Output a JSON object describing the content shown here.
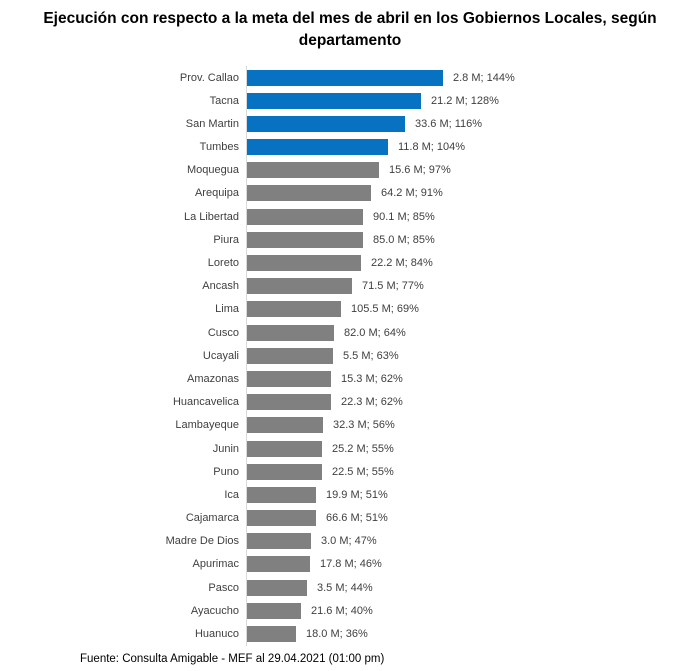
{
  "title": "Ejecución con respecto a la meta del mes de abril en los Gobiernos Locales, según departamento",
  "footer": "Fuente: Consulta Amigable - MEF al 29.04.2021 (01:00 pm)",
  "colors": {
    "above_goal_blue": "#0872C2",
    "below_goal_gray": "#808080",
    "axis_line": "#d9d9d9",
    "text": "#3f3f3f"
  },
  "chart_data": {
    "type": "bar",
    "orientation": "horizontal",
    "title": "Ejecución con respecto a la meta del mes de abril en los Gobiernos Locales, según departamento",
    "xlabel": "",
    "ylabel": "",
    "value_unit": "percent of monthly goal",
    "xlim": [
      0,
      150
    ],
    "grid": false,
    "legend": "none",
    "rows": [
      {
        "label": "Prov. Callao",
        "amount": "2.8 M",
        "pct": 144,
        "value_label": "2.8 M; 144%",
        "highlight": true
      },
      {
        "label": "Tacna",
        "amount": "21.2 M",
        "pct": 128,
        "value_label": "21.2 M; 128%",
        "highlight": true
      },
      {
        "label": "San Martin",
        "amount": "33.6 M",
        "pct": 116,
        "value_label": "33.6 M; 116%",
        "highlight": true
      },
      {
        "label": "Tumbes",
        "amount": "11.8 M",
        "pct": 104,
        "value_label": "11.8 M; 104%",
        "highlight": true
      },
      {
        "label": "Moquegua",
        "amount": "15.6 M",
        "pct": 97,
        "value_label": "15.6 M; 97%",
        "highlight": false
      },
      {
        "label": "Arequipa",
        "amount": "64.2 M",
        "pct": 91,
        "value_label": "64.2 M; 91%",
        "highlight": false
      },
      {
        "label": "La Libertad",
        "amount": "90.1 M",
        "pct": 85,
        "value_label": "90.1 M; 85%",
        "highlight": false
      },
      {
        "label": "Piura",
        "amount": "85.0 M",
        "pct": 85,
        "value_label": "85.0 M; 85%",
        "highlight": false
      },
      {
        "label": "Loreto",
        "amount": "22.2 M",
        "pct": 84,
        "value_label": "22.2 M; 84%",
        "highlight": false
      },
      {
        "label": "Ancash",
        "amount": "71.5 M",
        "pct": 77,
        "value_label": "71.5 M; 77%",
        "highlight": false
      },
      {
        "label": "Lima",
        "amount": "105.5 M",
        "pct": 69,
        "value_label": "105.5 M; 69%",
        "highlight": false
      },
      {
        "label": "Cusco",
        "amount": "82.0 M",
        "pct": 64,
        "value_label": "82.0 M; 64%",
        "highlight": false
      },
      {
        "label": "Ucayali",
        "amount": "5.5 M",
        "pct": 63,
        "value_label": "5.5 M; 63%",
        "highlight": false
      },
      {
        "label": "Amazonas",
        "amount": "15.3 M",
        "pct": 62,
        "value_label": "15.3 M; 62%",
        "highlight": false
      },
      {
        "label": "Huancavelica",
        "amount": "22.3 M",
        "pct": 62,
        "value_label": "22.3 M; 62%",
        "highlight": false
      },
      {
        "label": "Lambayeque",
        "amount": "32.3 M",
        "pct": 56,
        "value_label": "32.3 M; 56%",
        "highlight": false
      },
      {
        "label": "Junin",
        "amount": "25.2 M",
        "pct": 55,
        "value_label": "25.2 M; 55%",
        "highlight": false
      },
      {
        "label": "Puno",
        "amount": "22.5 M",
        "pct": 55,
        "value_label": "22.5 M; 55%",
        "highlight": false
      },
      {
        "label": "Ica",
        "amount": "19.9 M",
        "pct": 51,
        "value_label": "19.9 M; 51%",
        "highlight": false
      },
      {
        "label": "Cajamarca",
        "amount": "66.6 M",
        "pct": 51,
        "value_label": "66.6 M; 51%",
        "highlight": false
      },
      {
        "label": "Madre De Dios",
        "amount": "3.0 M",
        "pct": 47,
        "value_label": "3.0 M; 47%",
        "highlight": false
      },
      {
        "label": "Apurimac",
        "amount": "17.8 M",
        "pct": 46,
        "value_label": "17.8 M; 46%",
        "highlight": false
      },
      {
        "label": "Pasco",
        "amount": "3.5 M",
        "pct": 44,
        "value_label": "3.5 M; 44%",
        "highlight": false
      },
      {
        "label": "Ayacucho",
        "amount": "21.6 M",
        "pct": 40,
        "value_label": "21.6 M; 40%",
        "highlight": false
      },
      {
        "label": "Huanuco",
        "amount": "18.0 M",
        "pct": 36,
        "value_label": "18.0 M; 36%",
        "highlight": false
      }
    ]
  }
}
